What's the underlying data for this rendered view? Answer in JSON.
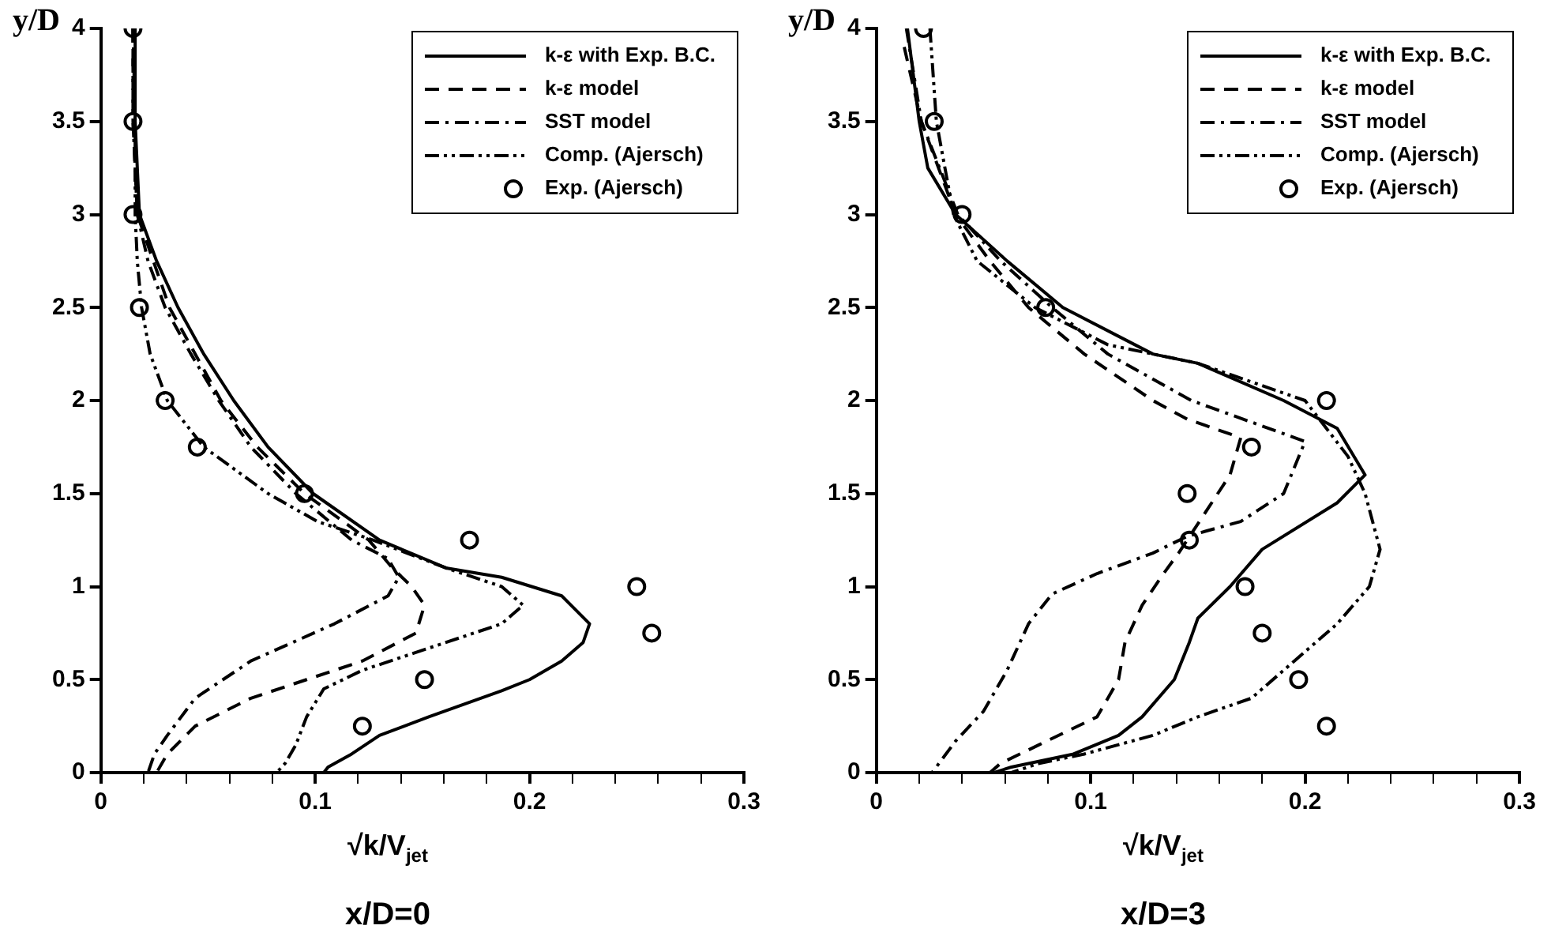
{
  "chart_data": [
    {
      "type": "line",
      "title": "x/D=0",
      "xlabel": "√k/V$_{jet}$",
      "ylabel": "y/D",
      "xlim": [
        0,
        0.3
      ],
      "ylim": [
        0,
        4
      ],
      "xticks": [
        0,
        {
          "value": 0.02,
          "label": null
        },
        {
          "value": 0.04,
          "label": null
        },
        {
          "value": 0.06,
          "label": null
        },
        {
          "value": 0.08,
          "label": null
        },
        0.1,
        {
          "value": 0.12,
          "label": null
        },
        {
          "value": 0.14,
          "label": null
        },
        {
          "value": 0.16,
          "label": null
        },
        {
          "value": 0.18,
          "label": null
        },
        0.2,
        {
          "value": 0.22,
          "label": null
        },
        {
          "value": 0.24,
          "label": null
        },
        {
          "value": 0.26,
          "label": null
        },
        {
          "value": 0.28,
          "label": null
        },
        0.3
      ],
      "yticks": [
        0,
        0.5,
        1,
        1.5,
        2,
        2.5,
        3,
        3.5,
        4
      ],
      "grid": false,
      "legend": "top right",
      "series": [
        {
          "name": "k-ε with Exp. B.C.",
          "type": "line",
          "line_style": "solid",
          "marker": "none",
          "color": "#000000",
          "x": [
            0.016,
            0.016,
            0.018,
            0.026,
            0.036,
            0.048,
            0.062,
            0.078,
            0.099,
            0.13,
            0.161,
            0.187,
            0.215,
            0.228,
            0.225,
            0.215,
            0.2,
            0.187,
            0.153,
            0.13,
            0.117,
            0.106,
            0.104
          ],
          "values": [
            4,
            3.5,
            3,
            2.75,
            2.5,
            2.25,
            2,
            1.75,
            1.5,
            1.25,
            1.1,
            1.05,
            0.95,
            0.8,
            0.7,
            0.6,
            0.5,
            0.44,
            0.3,
            0.2,
            0.1,
            0.03,
            0
          ]
        },
        {
          "name": "k-ε model",
          "type": "line",
          "line_style": "dashed",
          "marker": "none",
          "color": "#000000",
          "x": [
            0.015,
            0.015,
            0.017,
            0.032,
            0.056,
            0.073,
            0.095,
            0.125,
            0.136,
            0.145,
            0.151,
            0.147,
            0.122,
            0.096,
            0.07,
            0.044,
            0.031,
            0.026
          ],
          "values": [
            4,
            3.5,
            3,
            2.5,
            2,
            1.75,
            1.5,
            1.25,
            1.1,
            1,
            0.9,
            0.75,
            0.6,
            0.5,
            0.4,
            0.25,
            0.1,
            0
          ]
        },
        {
          "name": "SST model",
          "type": "line",
          "line_style": "dashdot",
          "marker": "none",
          "color": "#000000",
          "x": [
            0.015,
            0.015,
            0.017,
            0.022,
            0.03,
            0.042,
            0.055,
            0.07,
            0.091,
            0.117,
            0.134,
            0.139,
            0.134,
            0.109,
            0.07,
            0.044,
            0.031,
            0.025,
            0.022
          ],
          "values": [
            4,
            3.5,
            3,
            2.75,
            2.5,
            2.25,
            2,
            1.75,
            1.5,
            1.25,
            1.15,
            1.05,
            0.95,
            0.8,
            0.6,
            0.4,
            0.2,
            0.1,
            0
          ]
        },
        {
          "name": "Comp. (Ajersch)",
          "type": "line",
          "line_style": "dashdotdot",
          "marker": "none",
          "color": "#000000",
          "x": [
            0.015,
            0.016,
            0.016,
            0.017,
            0.019,
            0.023,
            0.031,
            0.048,
            0.078,
            0.101,
            0.127,
            0.161,
            0.187,
            0.197,
            0.187,
            0.161,
            0.122,
            0.104,
            0.096,
            0.091,
            0.086,
            0.082
          ],
          "values": [
            4,
            3.5,
            3,
            2.75,
            2.5,
            2.25,
            2,
            1.75,
            1.5,
            1.35,
            1.25,
            1.1,
            1,
            0.9,
            0.8,
            0.7,
            0.55,
            0.45,
            0.3,
            0.15,
            0.05,
            0
          ]
        },
        {
          "name": "Exp. (Ajersch)",
          "type": "scatter",
          "marker": "circle",
          "color": "#000000",
          "x": [
            0.015,
            0.015,
            0.015,
            0.018,
            0.03,
            0.045,
            0.095,
            0.172,
            0.25,
            0.257,
            0.151,
            0.122
          ],
          "values": [
            4,
            3.5,
            3,
            2.5,
            2,
            1.75,
            1.5,
            1.25,
            1,
            0.75,
            0.5,
            0.25
          ]
        }
      ]
    },
    {
      "type": "line",
      "title": "x/D=3",
      "xlabel": "√k/V$_{jet}$",
      "ylabel": "y/D",
      "xlim": [
        0,
        0.3
      ],
      "ylim": [
        0,
        4
      ],
      "xticks": [
        0,
        {
          "value": 0.02,
          "label": null
        },
        {
          "value": 0.04,
          "label": null
        },
        {
          "value": 0.06,
          "label": null
        },
        {
          "value": 0.08,
          "label": null
        },
        0.1,
        {
          "value": 0.12,
          "label": null
        },
        {
          "value": 0.14,
          "label": null
        },
        {
          "value": 0.16,
          "label": null
        },
        {
          "value": 0.18,
          "label": null
        },
        0.2,
        {
          "value": 0.22,
          "label": null
        },
        {
          "value": 0.24,
          "label": null
        },
        {
          "value": 0.26,
          "label": null
        },
        {
          "value": 0.28,
          "label": null
        },
        0.3
      ],
      "yticks": [
        0,
        0.5,
        1,
        1.5,
        2,
        2.5,
        3,
        3.5,
        4
      ],
      "grid": false,
      "legend": "top right",
      "series": [
        {
          "name": "k-ε with Exp. B.C.",
          "type": "line",
          "line_style": "solid",
          "marker": "none",
          "color": "#000000",
          "x": [
            0.0145,
            0.02,
            0.024,
            0.037,
            0.061,
            0.087,
            0.129,
            0.15,
            0.19,
            0.215,
            0.228,
            0.215,
            0.18,
            0.165,
            0.15,
            0.146,
            0.139,
            0.124,
            0.113,
            0.092,
            0.063,
            0.055
          ],
          "values": [
            4,
            3.5,
            3.25,
            3,
            2.75,
            2.5,
            2.25,
            2.2,
            2,
            1.85,
            1.6,
            1.45,
            1.2,
            1,
            0.83,
            0.7,
            0.5,
            0.3,
            0.2,
            0.1,
            0.03,
            0
          ]
        },
        {
          "name": "k-ε model",
          "type": "line",
          "line_style": "dashed",
          "marker": "none",
          "color": "#000000",
          "x": [
            0.013,
            0.021,
            0.037,
            0.053,
            0.071,
            0.097,
            0.129,
            0.145,
            0.17,
            0.165,
            0.141,
            0.134,
            0.124,
            0.116,
            0.113,
            0.103,
            0.076,
            0.058,
            0.053
          ],
          "values": [
            3.9,
            3.5,
            3,
            2.75,
            2.5,
            2.25,
            2,
            1.9,
            1.8,
            1.6,
            1.18,
            1.07,
            0.9,
            0.7,
            0.5,
            0.3,
            0.15,
            0.05,
            0
          ]
        },
        {
          "name": "SST model",
          "type": "line",
          "line_style": "dashdot",
          "marker": "none",
          "color": "#000000",
          "x": [
            0.014,
            0.021,
            0.038,
            0.058,
            0.082,
            0.108,
            0.147,
            0.2,
            0.19,
            0.17,
            0.145,
            0.129,
            0.103,
            0.082,
            0.071,
            0.061,
            0.05,
            0.037,
            0.026
          ],
          "values": [
            4,
            3.5,
            3,
            2.75,
            2.5,
            2.25,
            2,
            1.78,
            1.5,
            1.35,
            1.27,
            1.18,
            1.07,
            0.96,
            0.8,
            0.55,
            0.33,
            0.17,
            0
          ]
        },
        {
          "name": "Comp. (Ajersch)",
          "type": "line",
          "line_style": "dashdotdot",
          "marker": "none",
          "color": "#000000",
          "x": [
            0.025,
            0.028,
            0.036,
            0.047,
            0.074,
            0.108,
            0.15,
            0.2,
            0.22,
            0.228,
            0.235,
            0.23,
            0.215,
            0.195,
            0.175,
            0.15,
            0.129,
            0.097,
            0.076,
            0.063
          ],
          "values": [
            4,
            3.5,
            3,
            2.75,
            2.5,
            2.3,
            2.2,
            2,
            1.7,
            1.5,
            1.2,
            1,
            0.8,
            0.6,
            0.4,
            0.3,
            0.2,
            0.1,
            0.05,
            0
          ]
        },
        {
          "name": "Exp. (Ajersch)",
          "type": "scatter",
          "marker": "circle",
          "color": "#000000",
          "x": [
            0.022,
            0.027,
            0.04,
            0.079,
            0.21,
            0.175,
            0.145,
            0.146,
            0.172,
            0.18,
            0.197,
            0.21
          ],
          "values": [
            4,
            3.5,
            3,
            2.5,
            2,
            1.75,
            1.5,
            1.25,
            1,
            0.75,
            0.5,
            0.25
          ]
        }
      ]
    }
  ]
}
